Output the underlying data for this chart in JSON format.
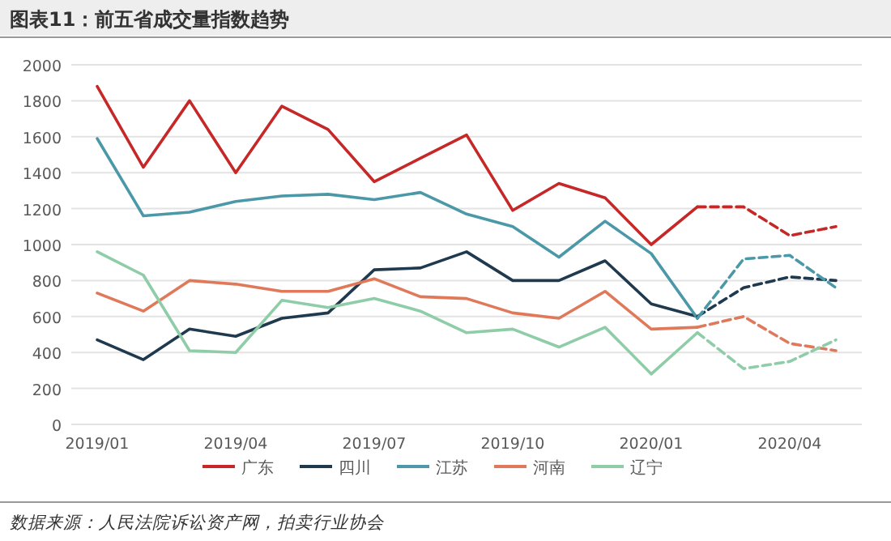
{
  "chart_data": {
    "type": "line",
    "title": "图表11：前五省成交量指数趋势",
    "categories": [
      "2019/01",
      null,
      null,
      "2019/04",
      null,
      null,
      "2019/07",
      null,
      null,
      "2019/10",
      null,
      null,
      "2020/01",
      null,
      null,
      "2020/04",
      null
    ],
    "series": [
      {
        "name": "广东",
        "color": "#c62828",
        "line_style": "solid",
        "values": [
          1880,
          1430,
          1800,
          1400,
          1770,
          1640,
          1350,
          1480,
          1610,
          1190,
          1340,
          1260,
          1000,
          1210,
          null,
          null,
          null
        ]
      },
      {
        "name": "四川",
        "color": "#1f3a4f",
        "line_style": "solid",
        "values": [
          470,
          360,
          530,
          490,
          590,
          620,
          860,
          870,
          960,
          800,
          800,
          910,
          670,
          600,
          null,
          null,
          null
        ]
      },
      {
        "name": "江苏",
        "color": "#4a98a8",
        "line_style": "solid",
        "values": [
          1590,
          1160,
          1180,
          1240,
          1270,
          1280,
          1250,
          1290,
          1170,
          1100,
          930,
          1130,
          950,
          590,
          null,
          null,
          null
        ]
      },
      {
        "name": "河南",
        "color": "#e0795a",
        "line_style": "solid",
        "values": [
          730,
          630,
          800,
          780,
          740,
          740,
          810,
          710,
          700,
          620,
          590,
          740,
          530,
          540,
          null,
          null,
          null
        ]
      },
      {
        "name": "辽宁",
        "color": "#8fcca8",
        "line_style": "solid",
        "values": [
          960,
          830,
          410,
          400,
          690,
          650,
          700,
          630,
          510,
          530,
          430,
          540,
          280,
          510,
          null,
          null,
          null
        ]
      },
      {
        "color": "#c62828",
        "line_style": "dashed",
        "values": [
          null,
          null,
          null,
          null,
          null,
          null,
          null,
          null,
          null,
          null,
          null,
          null,
          null,
          1210,
          1210,
          1050,
          1100
        ]
      },
      {
        "color": "#1f3a4f",
        "line_style": "dashed",
        "values": [
          null,
          null,
          null,
          null,
          null,
          null,
          null,
          null,
          null,
          null,
          null,
          null,
          null,
          600,
          760,
          820,
          800
        ]
      },
      {
        "color": "#4a98a8",
        "line_style": "dashed",
        "values": [
          null,
          null,
          null,
          null,
          null,
          null,
          null,
          null,
          null,
          null,
          null,
          null,
          null,
          590,
          920,
          940,
          760
        ]
      },
      {
        "color": "#e0795a",
        "line_style": "dashed",
        "values": [
          null,
          null,
          null,
          null,
          null,
          null,
          null,
          null,
          null,
          null,
          null,
          null,
          null,
          540,
          600,
          450,
          410
        ]
      },
      {
        "color": "#8fcca8",
        "line_style": "dashed",
        "values": [
          null,
          null,
          null,
          null,
          null,
          null,
          null,
          null,
          null,
          null,
          null,
          null,
          null,
          510,
          310,
          350,
          470
        ]
      }
    ],
    "ylim": [
      0,
      2000
    ],
    "yticks": [
      0,
      200,
      400,
      600,
      800,
      1000,
      1200,
      1400,
      1600,
      1800,
      2000
    ],
    "grid": "y",
    "legend": "bottom",
    "marker": "none",
    "annotations": [
      "数据来源：人民法院诉讼资产网，拍卖行业协会"
    ]
  }
}
